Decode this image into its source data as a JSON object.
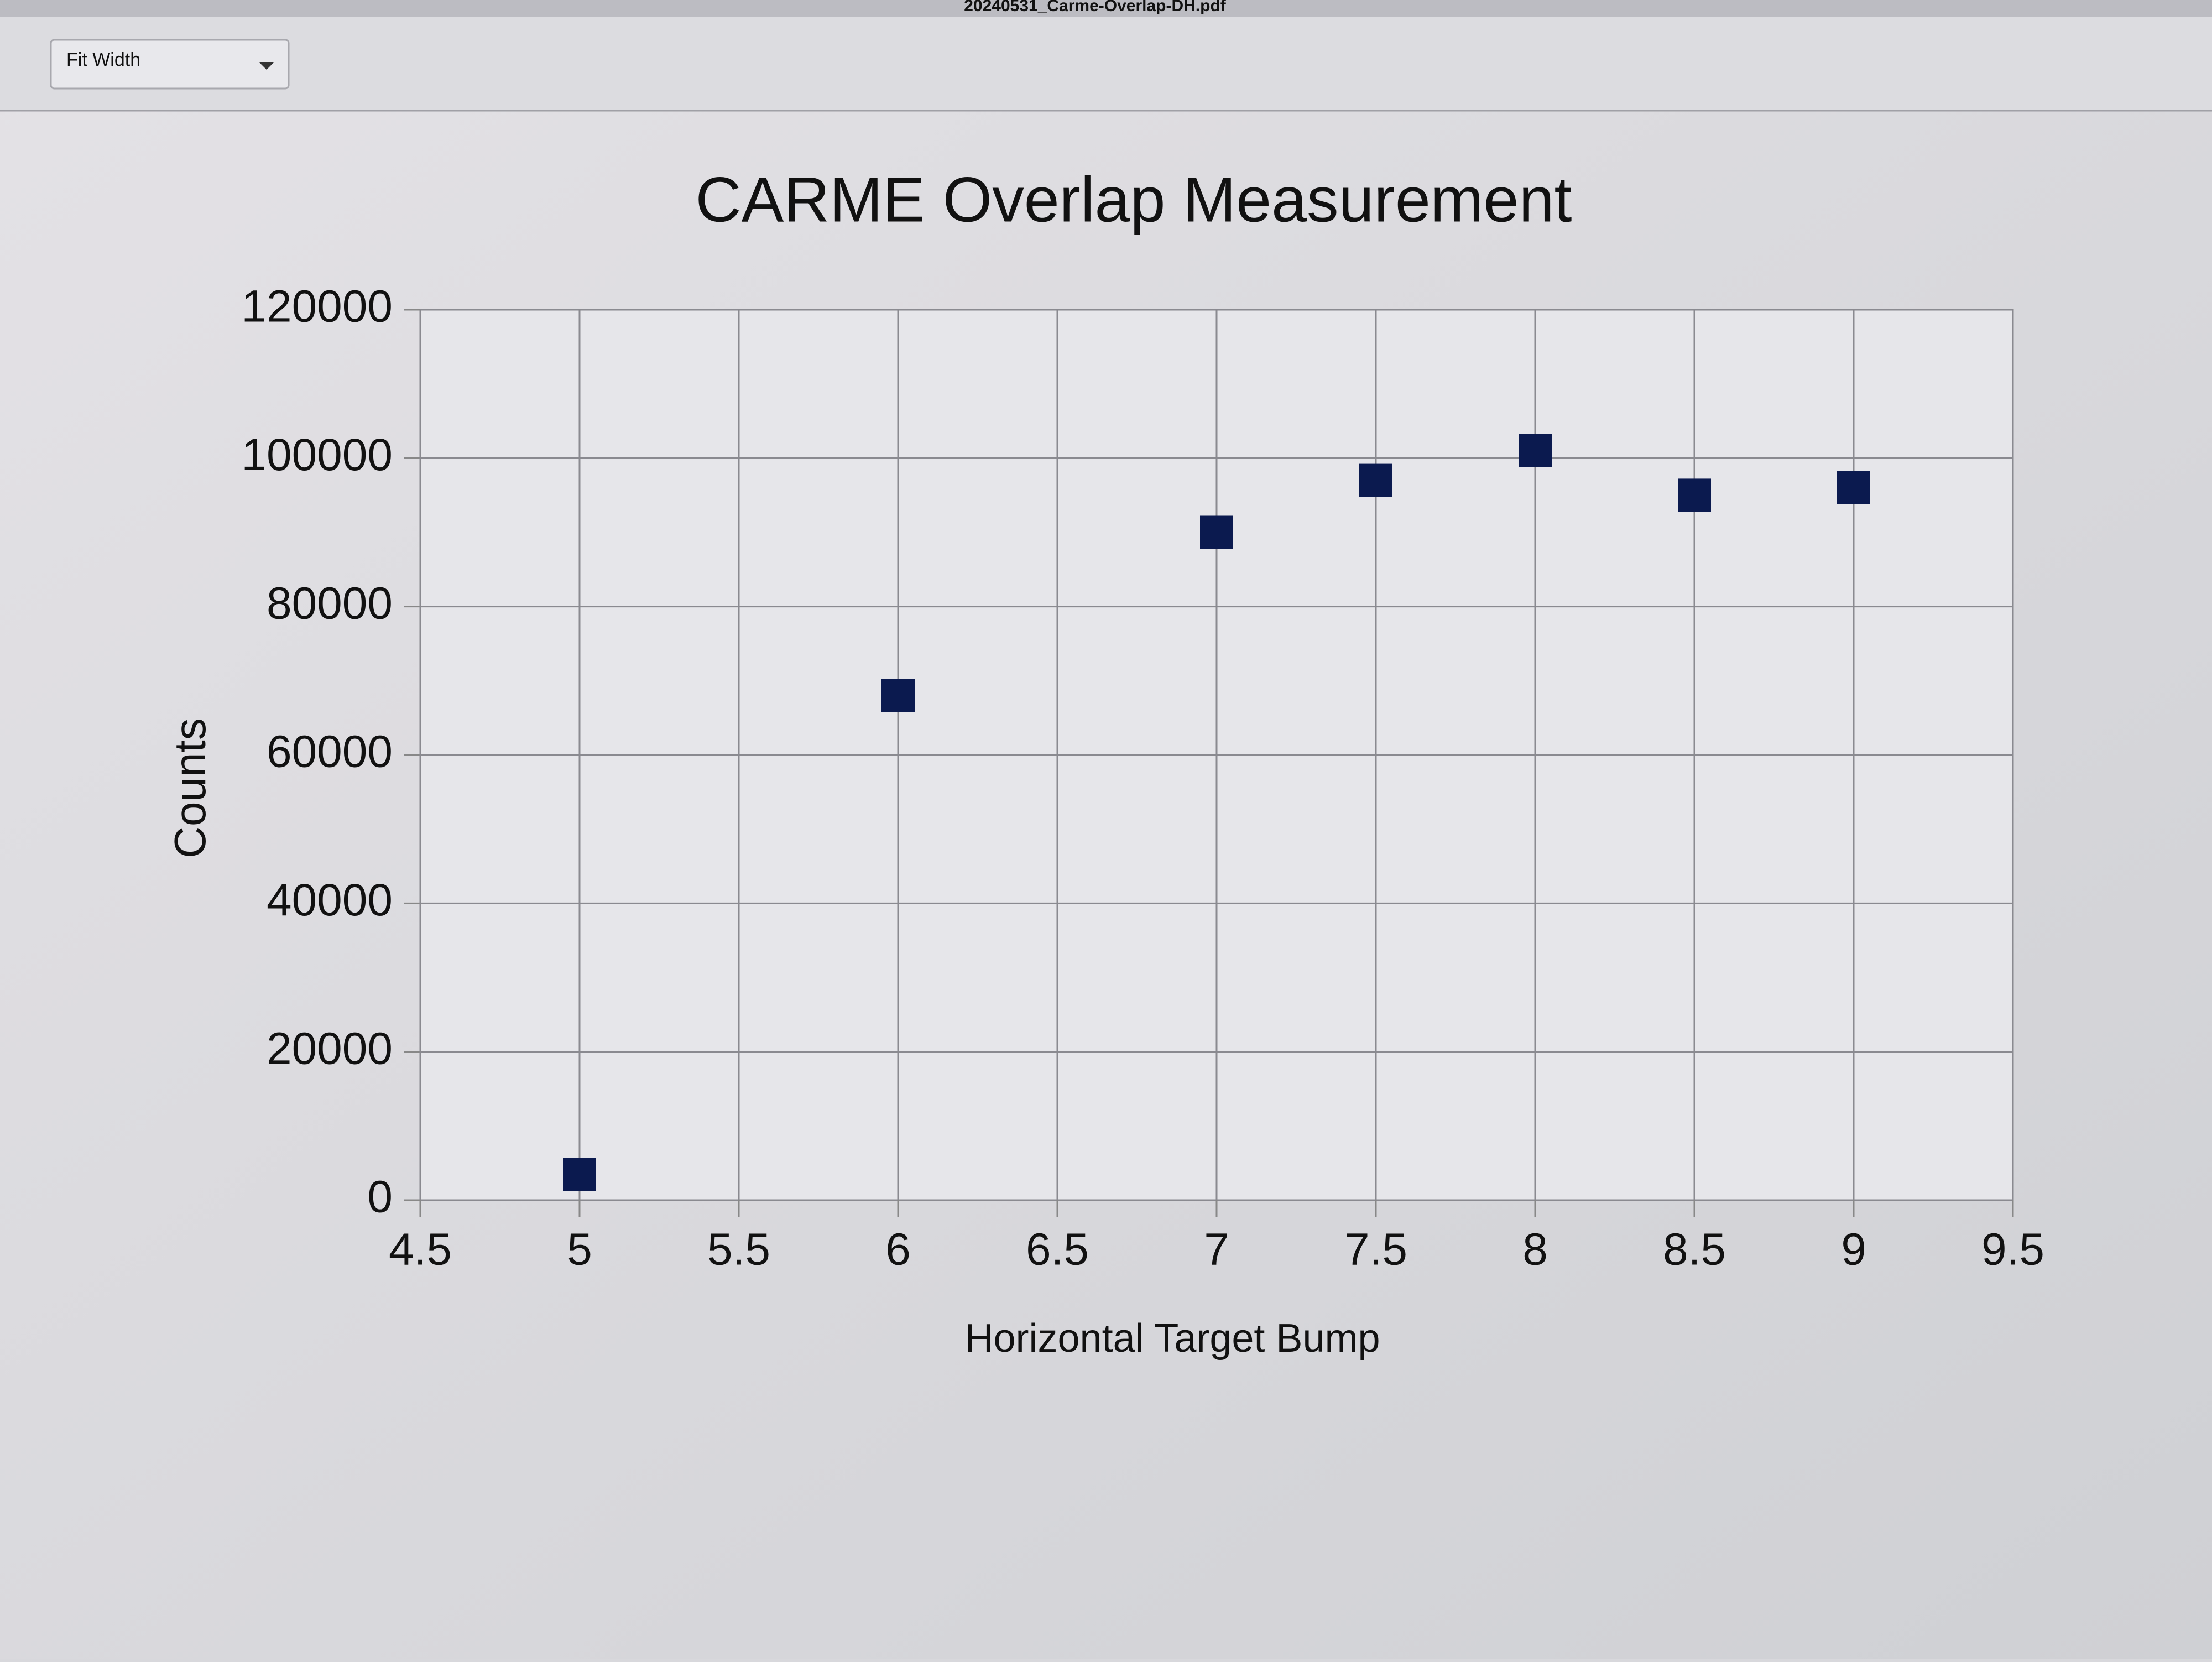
{
  "viewer": {
    "filename": "20240531_Carme-Overlap-DH.pdf",
    "zoom": "Fit Width"
  },
  "chart_data": {
    "type": "scatter",
    "title": "CARME Overlap Measurement",
    "xlabel": "Horizontal Target Bump",
    "ylabel": "Counts",
    "x": [
      5,
      6,
      7,
      7.5,
      8,
      8.5,
      9
    ],
    "series": [
      {
        "color": "#0b1a4f",
        "values": [
          3500,
          68000,
          90000,
          97000,
          101000,
          95000,
          96000
        ]
      }
    ],
    "xlim": [
      4.5,
      9.5
    ],
    "ylim": [
      0,
      120000
    ],
    "xticks": [
      4.5,
      5,
      5.5,
      6,
      6.5,
      7,
      7.5,
      8,
      8.5,
      9,
      9.5
    ],
    "yticks": [
      0,
      20000,
      40000,
      60000,
      80000,
      100000,
      120000
    ],
    "grid": true,
    "marker": "square"
  }
}
